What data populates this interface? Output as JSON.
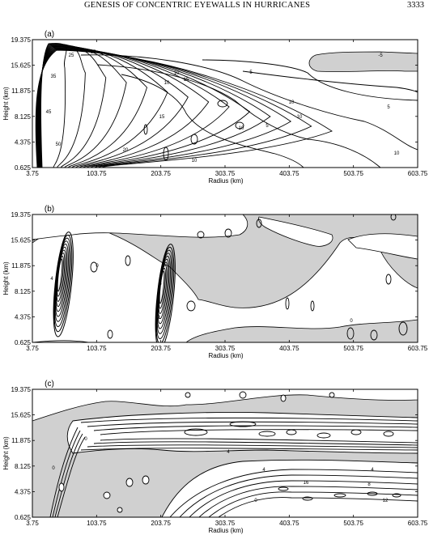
{
  "header": {
    "running_title": "GENESIS OF CONCENTRIC EYEWALLS IN HURRICANES",
    "page_number": "3333"
  },
  "colors": {
    "shade": "#d0d0d0",
    "line": "#000000",
    "background": "#ffffff"
  },
  "chart_data": [
    {
      "type": "contour",
      "panel_label": "(a)",
      "xlabel": "Radius (km)",
      "ylabel": "Height (km)",
      "x_ticks": [
        "3.75",
        "103.75",
        "203.75",
        "303.75",
        "403.75",
        "503.75",
        "603.75"
      ],
      "y_ticks": [
        "0.625",
        "4.375",
        "8.125",
        "11.875",
        "15.625",
        "19.375"
      ],
      "xlim": [
        3.75,
        603.75
      ],
      "ylim": [
        0.625,
        19.375
      ],
      "contour_labels": [
        "5",
        "10",
        "15",
        "20",
        "25",
        "30",
        "35",
        "40",
        "45",
        "50",
        "-5"
      ],
      "shaded": "negative values"
    },
    {
      "type": "contour",
      "panel_label": "(b)",
      "xlabel": "Radius (km)",
      "ylabel": "Height (km)",
      "x_ticks": [
        "3.75",
        "103.75",
        "203.75",
        "303.75",
        "403.75",
        "503.75",
        "603.75"
      ],
      "y_ticks": [
        "0.625",
        "4.375",
        "8.125",
        "11.875",
        "15.625",
        "19.375"
      ],
      "xlim": [
        3.75,
        603.75
      ],
      "ylim": [
        0.625,
        19.375
      ],
      "contour_labels": [
        "0",
        "2",
        "4",
        "6",
        "8"
      ],
      "shaded": "negative values"
    },
    {
      "type": "contour",
      "panel_label": "(c)",
      "xlabel": "Radius (km)",
      "ylabel": "Height (km)",
      "x_ticks": [
        "3.75",
        "103.75",
        "203.75",
        "303.75",
        "403.75",
        "503.75",
        "603.75"
      ],
      "y_ticks": [
        "0.625",
        "4.375",
        "8.125",
        "11.875",
        "15.625",
        "19.375"
      ],
      "xlim": [
        3.75,
        603.75
      ],
      "ylim": [
        0.625,
        19.375
      ],
      "contour_labels": [
        "0",
        "4",
        "8",
        "12",
        "16",
        "20"
      ],
      "shaded": "negative values"
    }
  ]
}
